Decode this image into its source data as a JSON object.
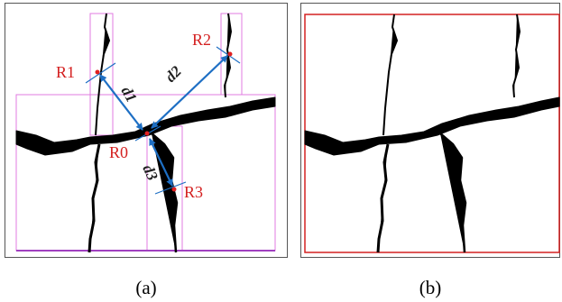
{
  "panel_a": {
    "labels": {
      "r0": "R0",
      "r1": "R1",
      "r2": "R2",
      "r3": "R3",
      "d1": "d1",
      "d2": "d2",
      "d3": "d3"
    },
    "caption": "(a)"
  },
  "panel_b": {
    "caption": "(b)"
  }
}
